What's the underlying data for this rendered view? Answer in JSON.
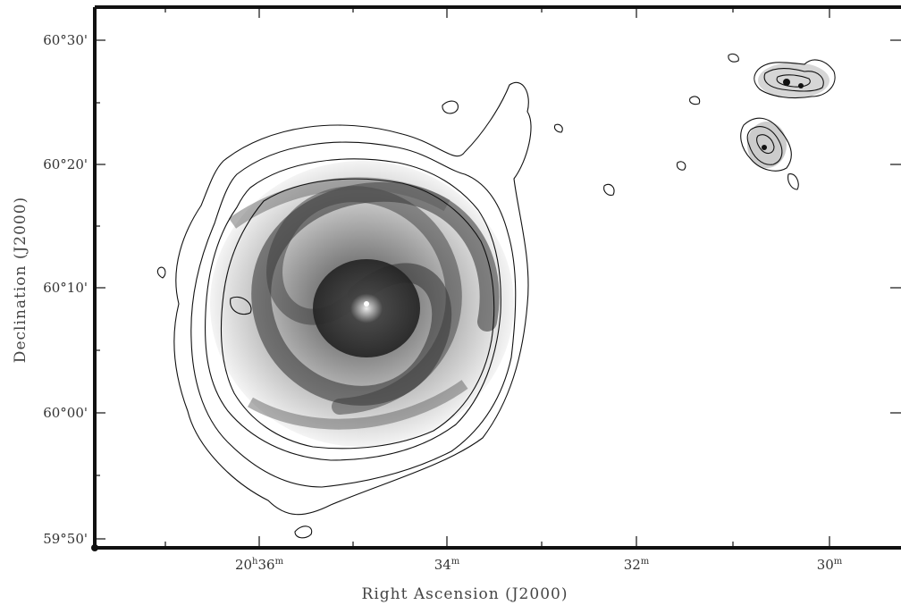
{
  "figure": {
    "x_axis_title": "Right Ascension (J2000)",
    "y_axis_title": "Declination (J2000)",
    "x_ticks": [
      {
        "h": "20",
        "hsup": "h",
        "m": "36",
        "msup": "m"
      },
      {
        "m": "34",
        "msup": "m"
      },
      {
        "m": "32",
        "msup": "m"
      },
      {
        "m": "30",
        "msup": "m"
      }
    ],
    "y_ticks": [
      {
        "label": "60°30'"
      },
      {
        "label": "60°20'"
      },
      {
        "label": "60°10'"
      },
      {
        "label": "60°00'"
      },
      {
        "label": "59°50'"
      }
    ],
    "image_style": "greyscale optical image with overlaid black contours",
    "colors": {
      "frame": "#111111",
      "contour": "#111111",
      "background": "#ffffff"
    }
  }
}
